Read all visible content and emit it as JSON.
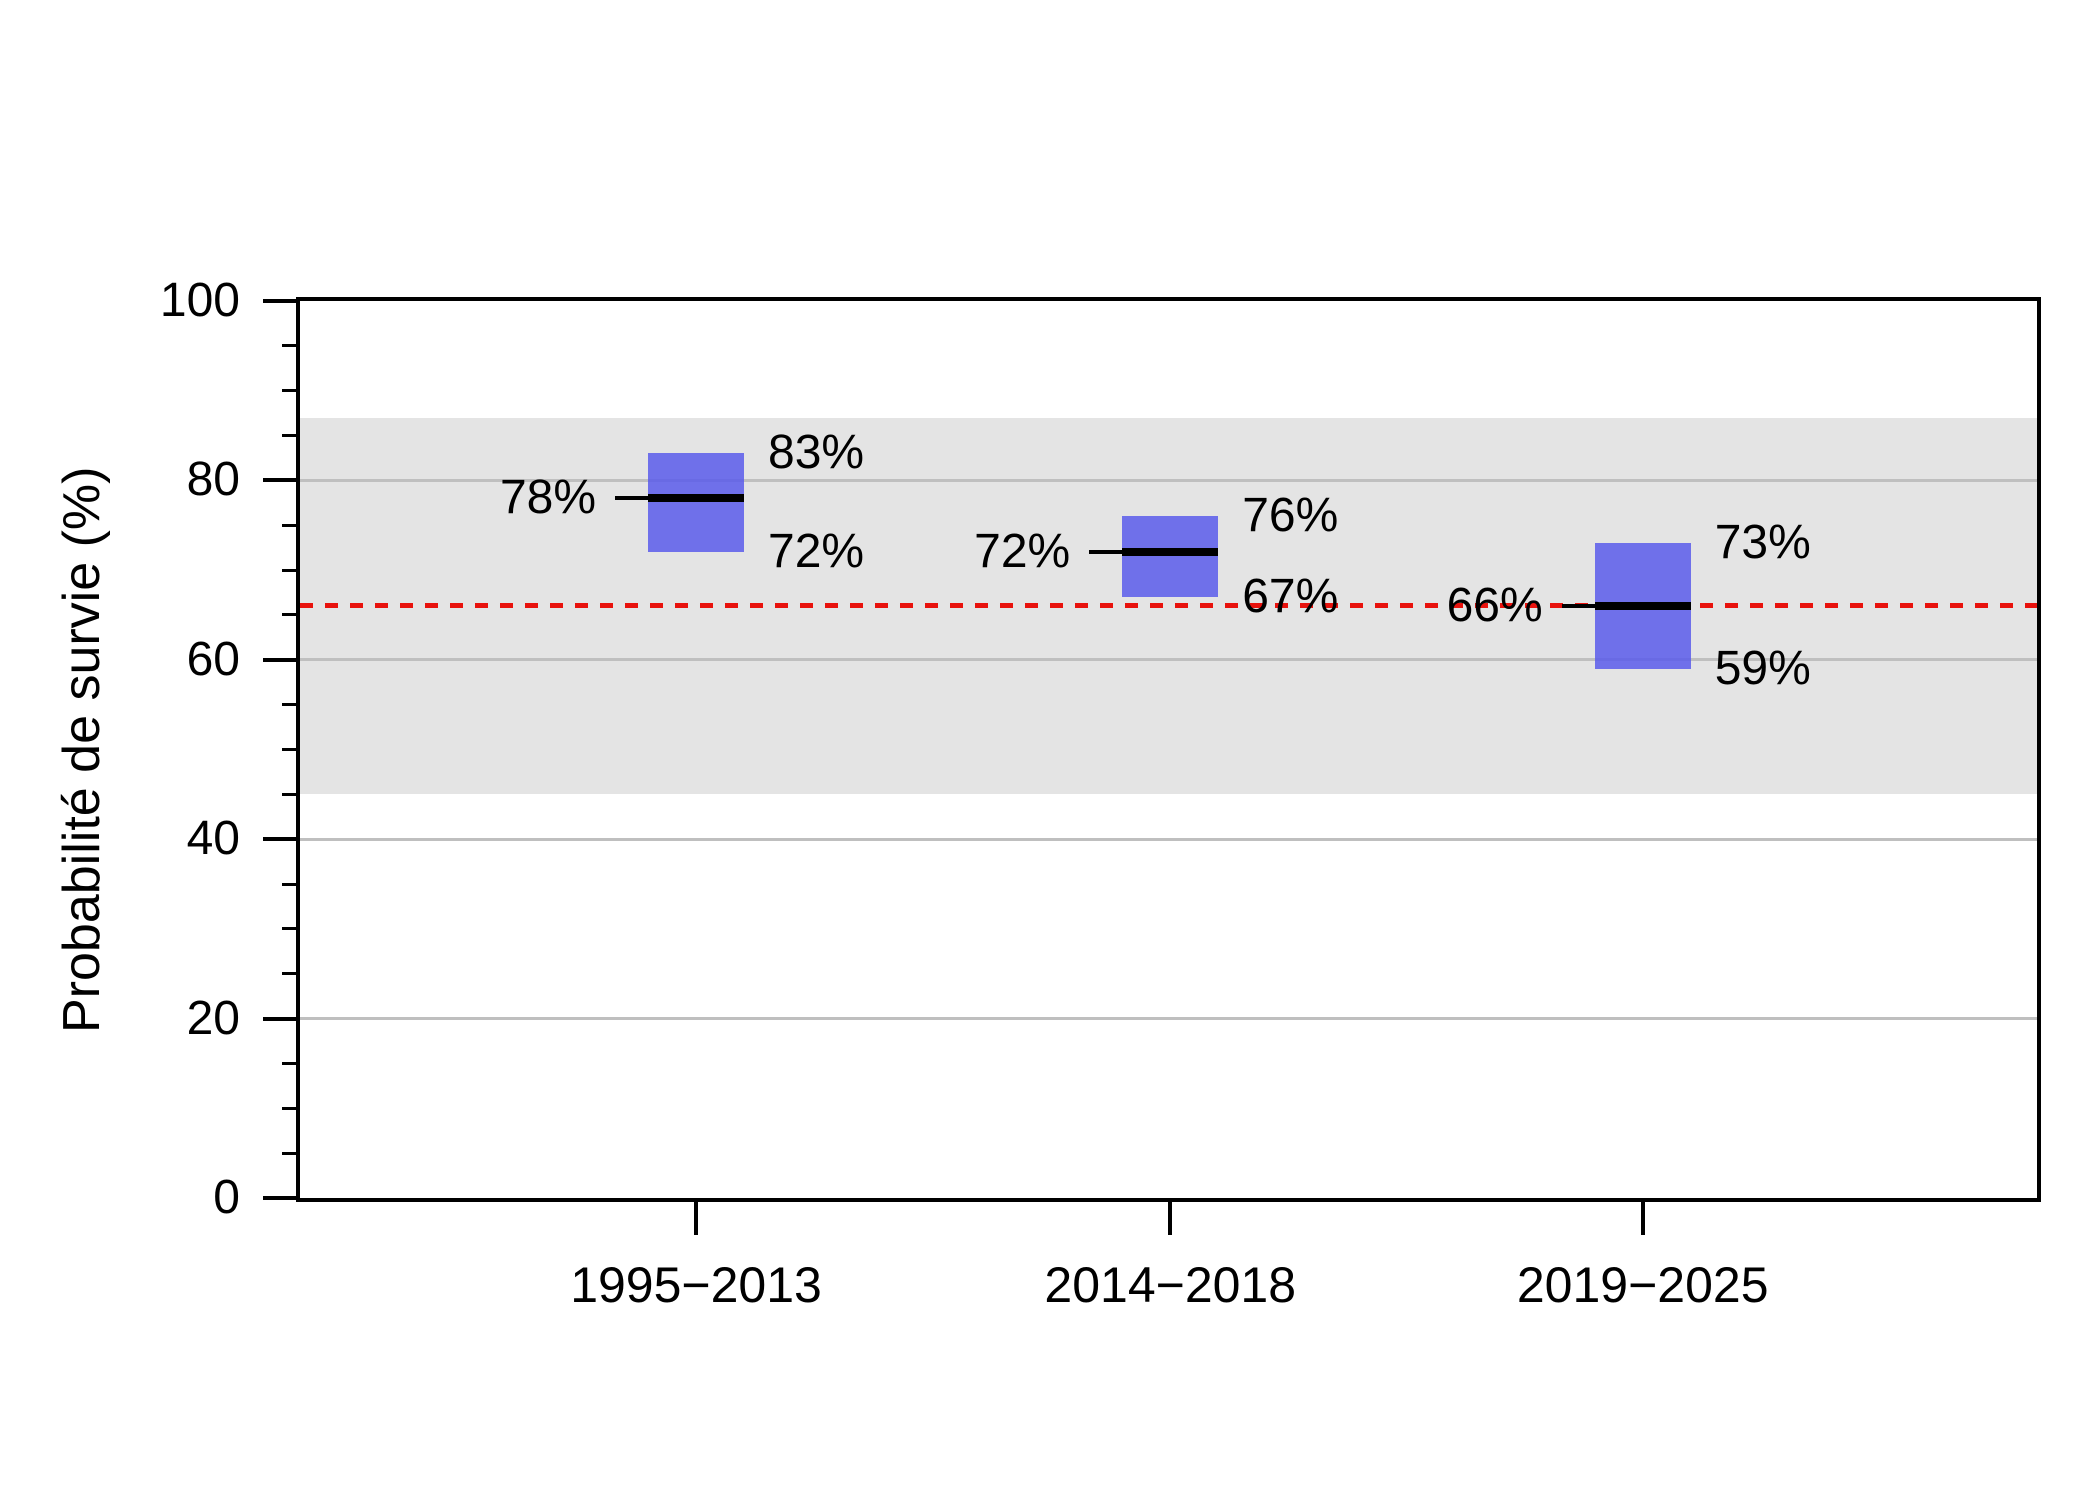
{
  "y_axis": {
    "title": "Probabilité de survie (%)",
    "tick_values": [
      0,
      20,
      40,
      60,
      80,
      100
    ],
    "tick_labels": [
      "0",
      "20",
      "40",
      "60",
      "80",
      "100"
    ],
    "minor_tick_step": 5
  },
  "x_axis": {
    "categories": [
      "1995−2013",
      "2014−2018",
      "2019−2025"
    ]
  },
  "chart_data": {
    "type": "bar",
    "subtype": "interval-estimate-boxes",
    "title": "",
    "xlabel": "",
    "ylabel": "Probabilité de survie (%)",
    "ylim": [
      0,
      100
    ],
    "grid": true,
    "legend_position": "none",
    "categories": [
      "1995−2013",
      "2014−2018",
      "2019−2025"
    ],
    "series": [
      {
        "name": "upper",
        "values": [
          83,
          76,
          73
        ]
      },
      {
        "name": "estimate",
        "values": [
          78,
          72,
          66
        ]
      },
      {
        "name": "lower",
        "values": [
          72,
          67,
          59
        ]
      }
    ],
    "point_labels": [
      {
        "upper": "83%",
        "mid": "78%",
        "lower": "72%"
      },
      {
        "upper": "76%",
        "mid": "72%",
        "lower": "67%"
      },
      {
        "upper": "73%",
        "mid": "66%",
        "lower": "59%"
      }
    ],
    "gridlines": [
      20,
      40,
      60,
      80
    ],
    "reference_line": {
      "value": 66,
      "style": "dashed",
      "color": "#e8120d"
    },
    "band": {
      "from": 45,
      "to": 87,
      "color": "#e4e4e4"
    },
    "colors": {
      "box_fill": "rgba(85,87,235,0.82)",
      "estimate_line": "#000000",
      "gridline": "#bfbfbf",
      "axis": "#000000",
      "background": "#ffffff"
    }
  }
}
